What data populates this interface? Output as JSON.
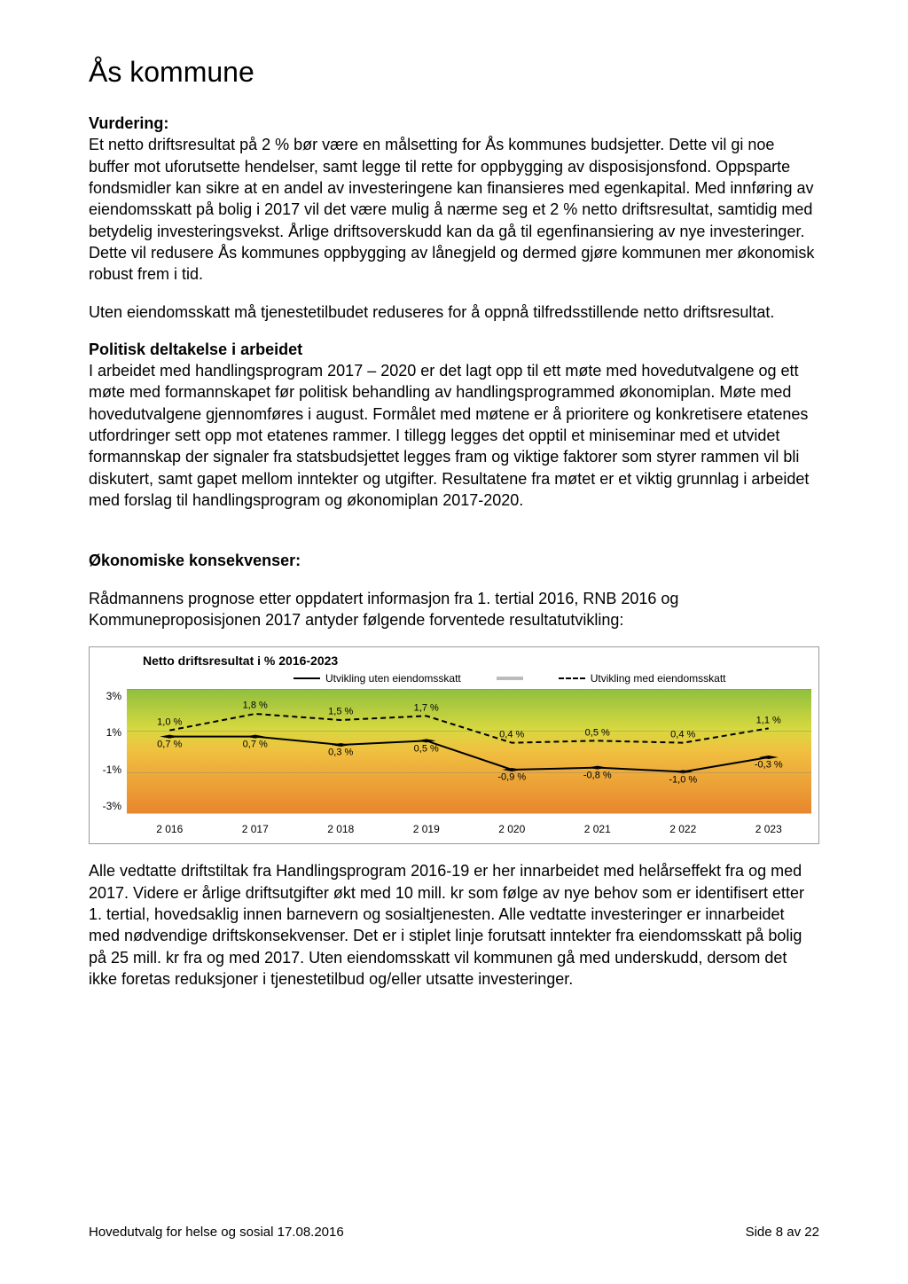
{
  "page_title": "Ås kommune",
  "sections": {
    "vurdering_heading": "Vurdering:",
    "vurdering_p1": "Et netto driftsresultat på 2 % bør være en målsetting for Ås kommunes budsjetter. Dette vil gi noe buffer mot uforutsette hendelser, samt legge til rette for oppbygging av disposisjonsfond. Oppsparte fondsmidler kan sikre at en andel av investeringene kan finansieres med egenkapital.  Med innføring av eiendomsskatt på bolig i 2017 vil det være mulig å nærme seg et 2 % netto driftsresultat, samtidig med betydelig investeringsvekst. Årlige driftsoverskudd kan da gå til egenfinansiering av nye investeringer. Dette vil redusere Ås kommunes oppbygging av lånegjeld og dermed gjøre kommunen mer økonomisk robust frem i tid.",
    "vurdering_p2": "Uten eiendomsskatt må tjenestetilbudet reduseres for å oppnå tilfredsstillende netto driftsresultat.",
    "politisk_heading": "Politisk deltakelse i arbeidet",
    "politisk_p": "I arbeidet med handlingsprogram 2017 – 2020 er det lagt opp til ett møte med hovedutvalgene og ett møte med formannskapet før politisk behandling av handlingsprogrammed økonomiplan. Møte med hovedutvalgene gjennomføres i august. Formålet med møtene er å prioritere og konkretisere etatenes utfordringer sett opp mot etatenes rammer. I tillegg legges det opptil et miniseminar med et utvidet formannskap der signaler fra statsbudsjettet legges fram og viktige faktorer som styrer rammen vil bli diskutert, samt gapet mellom inntekter og utgifter. Resultatene fra møtet er et viktig grunnlag i arbeidet med forslag til handlingsprogram og økonomiplan 2017-2020.",
    "oko_heading": "Økonomiske konsekvenser:",
    "oko_intro": "Rådmannens prognose etter oppdatert informasjon fra 1. tertial 2016, RNB 2016 og Kommuneproposisjonen 2017 antyder følgende forventede resultatutvikling:",
    "oko_after": "Alle vedtatte driftstiltak fra Handlingsprogram 2016-19 er her innarbeidet med helårseffekt fra og med 2017. Videre er årlige driftsutgifter økt med 10 mill. kr som følge av nye behov som er identifisert etter 1. tertial, hovedsaklig innen barnevern og sosialtjenesten. Alle vedtatte investeringer er innarbeidet med nødvendige driftskonsekvenser.  Det er i stiplet linje forutsatt inntekter fra eiendomsskatt på bolig på 25 mill. kr fra og med 2017. Uten eiendomsskatt vil kommunen gå med underskudd, dersom det ikke foretas reduksjoner i tjenestetilbud og/eller utsatte investeringer."
  },
  "chart": {
    "title": "Netto driftsresultat i % 2016-2023",
    "legend": {
      "series1": "Utvikling uten eiendomsskatt",
      "series2": "Utvikling med eiendomsskatt"
    },
    "ylim": [
      -3,
      3
    ],
    "yticks": [
      "3%",
      "1%",
      "-1%",
      "-3%"
    ],
    "gradient_stops": [
      {
        "pct": 0,
        "color": "#8fbf3f"
      },
      {
        "pct": 33,
        "color": "#d9d93f"
      },
      {
        "pct": 50,
        "color": "#f0c040"
      },
      {
        "pct": 100,
        "color": "#e8862f"
      }
    ],
    "xlabels": [
      "2 016",
      "2 017",
      "2 018",
      "2 019",
      "2 020",
      "2 021",
      "2 022",
      "2 023"
    ],
    "series_without": {
      "values": [
        0.7,
        0.7,
        0.3,
        0.5,
        -0.9,
        -0.8,
        -1.0,
        -0.3
      ],
      "labels": [
        "0,7 %",
        "0,7 %",
        "0,3 %",
        "0,5 %",
        "-0,9 %",
        "-0,8 %",
        "-1,0 %",
        "-0,3 %"
      ],
      "style": "solid",
      "color": "#000000",
      "width": 2
    },
    "series_with": {
      "values": [
        1.0,
        1.8,
        1.5,
        1.7,
        0.4,
        0.5,
        0.4,
        1.1
      ],
      "labels": [
        "1,0 %",
        "1,8 %",
        "1,5 %",
        "1,7 %",
        "0,4 %",
        "0,5 %",
        "0,4 %",
        "1,1 %"
      ],
      "style": "dashed",
      "color": "#000000",
      "width": 2
    }
  },
  "footer": {
    "left": "Hovedutvalg for helse og sosial 17.08.2016",
    "right": "Side 8 av 22"
  }
}
